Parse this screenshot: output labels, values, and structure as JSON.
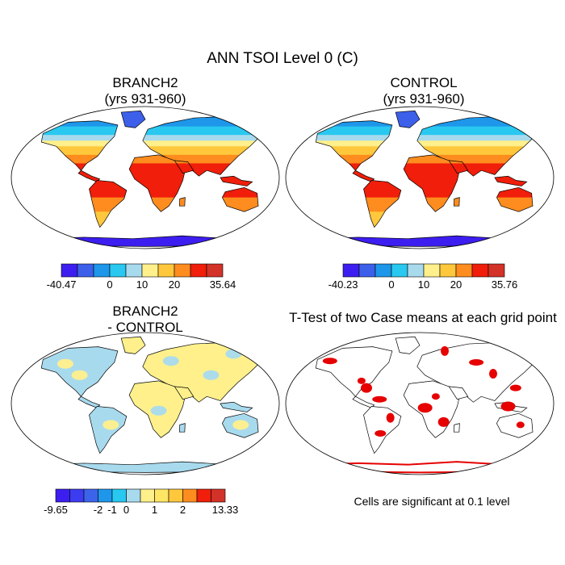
{
  "title": "ANN TSOI Level 0 (C)",
  "colors": {
    "abs_scale": [
      "#3c1ef0",
      "#3c60ea",
      "#1e96ea",
      "#28c8f0",
      "#a8daee",
      "#fff08c",
      "#ffc83c",
      "#ff8c1e",
      "#f01e0a",
      "#d23228"
    ],
    "diff_scale": [
      "#3c1ef0",
      "#3c3cf0",
      "#3c64ea",
      "#1e96ea",
      "#28c8f0",
      "#a8daee",
      "#fff08c",
      "#ffe664",
      "#ffc83c",
      "#ff8c1e",
      "#f01e0a",
      "#d23228"
    ],
    "ocean": "#ffffff",
    "coast": "#000000",
    "significant": "#e60000"
  },
  "chart_data": [
    {
      "type": "heatmap",
      "title_lines": [
        "BRANCH2",
        "(yrs 931-960)"
      ],
      "projection": "robinson",
      "colorbar": {
        "min_label": "-40.47",
        "max_label": "35.64",
        "tick_labels": [
          "0",
          "10",
          "20"
        ],
        "n_bins": 10
      },
      "range": [
        -40.47,
        35.64
      ]
    },
    {
      "type": "heatmap",
      "title_lines": [
        "CONTROL",
        "(yrs 931-960)"
      ],
      "projection": "robinson",
      "colorbar": {
        "min_label": "-40.23",
        "max_label": "35.76",
        "tick_labels": [
          "0",
          "10",
          "20"
        ],
        "n_bins": 10
      },
      "range": [
        -40.23,
        35.76
      ]
    },
    {
      "type": "heatmap",
      "title_lines": [
        "BRANCH2",
        "- CONTROL"
      ],
      "projection": "robinson",
      "colorbar": {
        "min_label": "-9.65",
        "max_label": "13.33",
        "tick_labels": [
          "-2",
          "-1",
          "0",
          "1",
          "2"
        ],
        "n_bins": 12
      },
      "range": [
        -9.65,
        13.33
      ]
    },
    {
      "type": "heatmap",
      "title_lines": [
        "T-Test of two Case means at each grid point"
      ],
      "projection": "robinson",
      "note": "Cells are significant at 0.1 level",
      "significance_level": 0.1
    }
  ]
}
